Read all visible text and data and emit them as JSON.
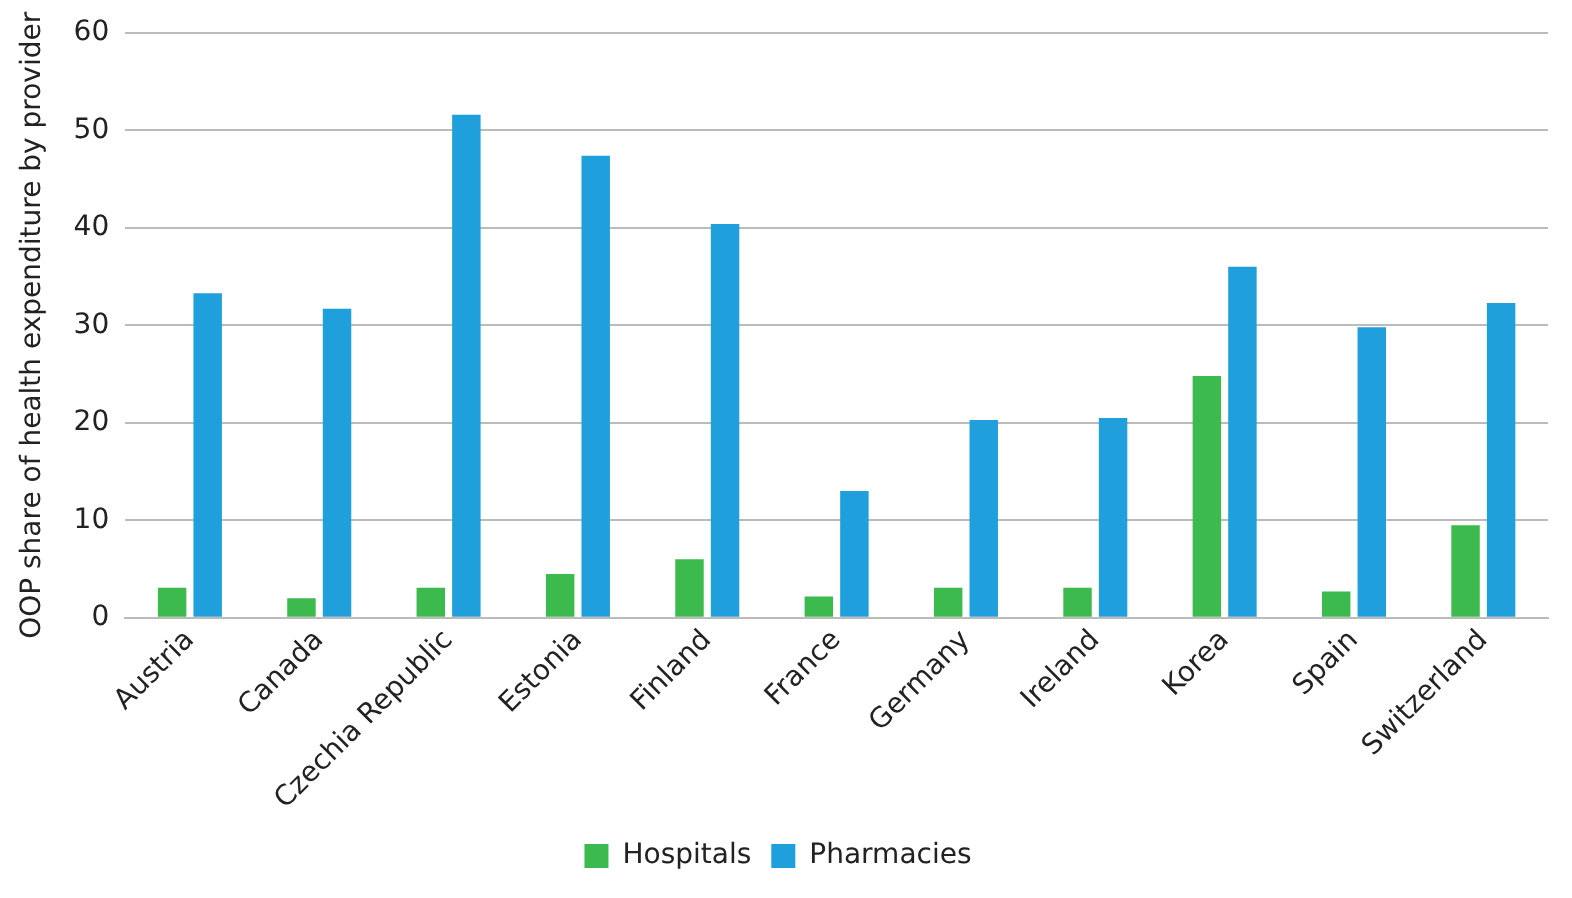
{
  "chart_data": {
    "type": "bar",
    "ylabel": "OOP share of health expenditure by provider",
    "categories": [
      "Austria",
      "Canada",
      "Czechia Republic",
      "Estonia",
      "Finland",
      "France",
      "Germany",
      "Ireland",
      "Korea",
      "Spain",
      "Switzerland"
    ],
    "series": [
      {
        "name": "Hospitals",
        "color": "#3dba4e",
        "values": [
          3.1,
          2,
          3.1,
          4.5,
          6,
          2.2,
          3.1,
          3.1,
          24.8,
          2.7,
          9.5
        ]
      },
      {
        "name": "Pharmacies",
        "color": "#1f9fdc",
        "values": [
          33.3,
          31.7,
          51.6,
          47.4,
          40.4,
          13,
          20.3,
          20.5,
          36,
          29.8,
          32.3
        ]
      }
    ],
    "ylim": [
      0,
      60
    ],
    "yticks": [
      0,
      10,
      20,
      30,
      40,
      50,
      60
    ],
    "grid": "y",
    "legend": "bottom"
  }
}
